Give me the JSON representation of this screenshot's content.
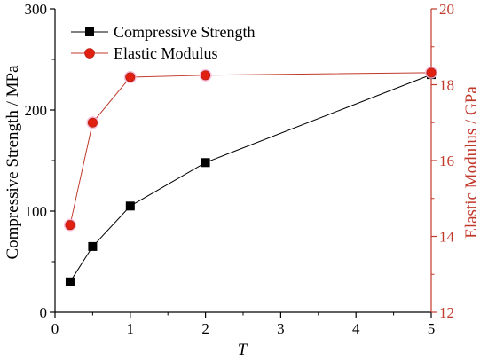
{
  "chart_data": {
    "type": "line",
    "xlabel": "T",
    "ylabel_left": "Compressive Strength / MPa",
    "ylabel_right": "Elastic Modulus / GPa",
    "xlim": [
      0,
      5
    ],
    "ylim_left": [
      0,
      300
    ],
    "ylim_right": [
      12,
      20
    ],
    "x_ticks": [
      0,
      1,
      2,
      3,
      4,
      5
    ],
    "y_ticks_left": [
      0,
      100,
      200,
      300
    ],
    "y_ticks_right": [
      12,
      14,
      16,
      18,
      20
    ],
    "grid": false,
    "legend_position": "top-left",
    "series": [
      {
        "name": "Compressive Strength",
        "axis": "left",
        "marker": "square",
        "color": "#000000",
        "x": [
          0.2,
          0.5,
          1,
          2,
          5
        ],
        "y": [
          30,
          65,
          105,
          148,
          235
        ]
      },
      {
        "name": "Elastic Modulus",
        "axis": "right",
        "marker": "circle",
        "color": "#c0392b",
        "x": [
          0.2,
          0.5,
          1,
          2,
          5
        ],
        "y": [
          14.3,
          17.0,
          18.2,
          18.25,
          18.32
        ]
      }
    ]
  },
  "colors": {
    "axis_left": "#000000",
    "axis_right": "#c0392b",
    "marker_fill_red": "#e02010",
    "marker_halo": "#f6b8d4"
  }
}
